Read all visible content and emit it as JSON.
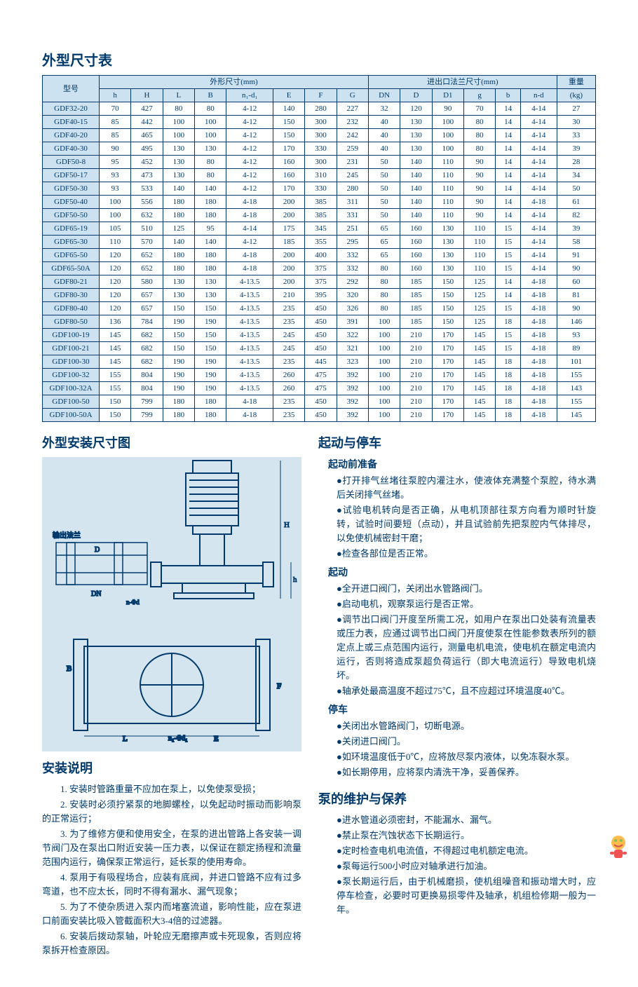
{
  "title_dims": "外型尺寸表",
  "thead": {
    "model": "型号",
    "shape": "外形尺寸(mm)",
    "flange": "进出口法兰尺寸(mm)",
    "weight": "重量",
    "weight_unit": "(kg)",
    "sub": [
      "h",
      "H",
      "L",
      "B",
      "n₁-d₁",
      "E",
      "F",
      "G",
      "DN",
      "D",
      "D1",
      "g",
      "b",
      "n-d"
    ]
  },
  "rows": [
    [
      "GDF32-20",
      "70",
      "427",
      "80",
      "80",
      "4-12",
      "140",
      "280",
      "227",
      "32",
      "120",
      "90",
      "70",
      "14",
      "4-14",
      "27"
    ],
    [
      "GDF40-15",
      "85",
      "442",
      "100",
      "100",
      "4-12",
      "150",
      "300",
      "232",
      "40",
      "130",
      "100",
      "80",
      "14",
      "4-14",
      "30"
    ],
    [
      "GDF40-20",
      "85",
      "465",
      "100",
      "100",
      "4-12",
      "150",
      "300",
      "242",
      "40",
      "130",
      "100",
      "80",
      "14",
      "4-14",
      "33"
    ],
    [
      "GDF40-30",
      "90",
      "495",
      "130",
      "130",
      "4-12",
      "170",
      "330",
      "259",
      "40",
      "130",
      "100",
      "80",
      "14",
      "4-14",
      "39"
    ],
    [
      "GDF50-8",
      "95",
      "452",
      "130",
      "80",
      "4-12",
      "160",
      "300",
      "231",
      "50",
      "140",
      "110",
      "90",
      "14",
      "4-14",
      "28"
    ],
    [
      "GDF50-17",
      "93",
      "473",
      "130",
      "80",
      "4-12",
      "160",
      "310",
      "245",
      "50",
      "140",
      "110",
      "90",
      "14",
      "4-14",
      "34"
    ],
    [
      "GDF50-30",
      "93",
      "533",
      "140",
      "140",
      "4-12",
      "170",
      "330",
      "280",
      "50",
      "140",
      "110",
      "90",
      "14",
      "4-14",
      "50"
    ],
    [
      "GDF50-40",
      "100",
      "556",
      "180",
      "180",
      "4-18",
      "200",
      "385",
      "311",
      "50",
      "140",
      "110",
      "90",
      "14",
      "4-18",
      "61"
    ],
    [
      "GDF50-50",
      "100",
      "632",
      "180",
      "180",
      "4-18",
      "200",
      "385",
      "331",
      "50",
      "140",
      "110",
      "90",
      "14",
      "4-14",
      "82"
    ],
    [
      "GDF65-19",
      "105",
      "510",
      "125",
      "95",
      "4-14",
      "175",
      "345",
      "251",
      "65",
      "160",
      "130",
      "110",
      "15",
      "4-14",
      "39"
    ],
    [
      "GDF65-30",
      "110",
      "570",
      "140",
      "140",
      "4-12",
      "185",
      "355",
      "295",
      "65",
      "160",
      "130",
      "110",
      "15",
      "4-14",
      "58"
    ],
    [
      "GDF65-50",
      "120",
      "652",
      "180",
      "180",
      "4-18",
      "200",
      "400",
      "332",
      "65",
      "160",
      "130",
      "110",
      "15",
      "4-14",
      "91"
    ],
    [
      "GDF65-50A",
      "120",
      "652",
      "180",
      "180",
      "4-18",
      "200",
      "375",
      "332",
      "80",
      "160",
      "130",
      "110",
      "15",
      "4-14",
      "90"
    ],
    [
      "GDF80-21",
      "120",
      "580",
      "130",
      "130",
      "4-13.5",
      "200",
      "375",
      "292",
      "80",
      "185",
      "150",
      "125",
      "14",
      "4-18",
      "60"
    ],
    [
      "GDF80-30",
      "120",
      "657",
      "130",
      "130",
      "4-13.5",
      "210",
      "395",
      "320",
      "80",
      "185",
      "150",
      "125",
      "14",
      "4-18",
      "81"
    ],
    [
      "GDF80-40",
      "120",
      "657",
      "150",
      "150",
      "4-13.5",
      "235",
      "450",
      "326",
      "80",
      "185",
      "150",
      "125",
      "15",
      "4-18",
      "90"
    ],
    [
      "GDF80-50",
      "136",
      "784",
      "190",
      "190",
      "4-13.5",
      "235",
      "450",
      "391",
      "100",
      "185",
      "150",
      "125",
      "18",
      "4-18",
      "146"
    ],
    [
      "GDF100-19",
      "145",
      "682",
      "150",
      "150",
      "4-13.5",
      "245",
      "450",
      "322",
      "100",
      "210",
      "170",
      "145",
      "15",
      "4-18",
      "93"
    ],
    [
      "GDF100-21",
      "145",
      "682",
      "150",
      "150",
      "4-13.5",
      "245",
      "450",
      "321",
      "100",
      "210",
      "170",
      "145",
      "15",
      "4-18",
      "89"
    ],
    [
      "GDF100-30",
      "145",
      "682",
      "190",
      "190",
      "4-13.5",
      "235",
      "445",
      "323",
      "100",
      "210",
      "170",
      "145",
      "18",
      "4-18",
      "101"
    ],
    [
      "GDF100-32",
      "155",
      "804",
      "190",
      "190",
      "4-13.5",
      "260",
      "475",
      "392",
      "100",
      "210",
      "170",
      "145",
      "18",
      "4-18",
      "155"
    ],
    [
      "GDF100-32A",
      "155",
      "804",
      "190",
      "190",
      "4-13.5",
      "260",
      "475",
      "392",
      "100",
      "210",
      "170",
      "145",
      "18",
      "4-18",
      "143"
    ],
    [
      "GDF100-50",
      "150",
      "799",
      "180",
      "180",
      "4-18",
      "235",
      "450",
      "392",
      "100",
      "210",
      "170",
      "145",
      "18",
      "4-18",
      "155"
    ],
    [
      "GDF100-50A",
      "150",
      "799",
      "180",
      "180",
      "4-18",
      "235",
      "450",
      "392",
      "100",
      "210",
      "170",
      "145",
      "18",
      "4-18",
      "145"
    ]
  ],
  "title_diagram": "外型安装尺寸图",
  "title_install": "安装说明",
  "install_items": [
    "1.  安装时管路重量不应加在泵上，以免使泵受损；",
    "2.  安装时必须拧紧泵的地脚螺栓，以免起动时振动而影响泵的正常运行；",
    "3.  为了维修方便和使用安全，在泵的进出管路上各安装一调节阀门及在泵出口附近安装一压力表，以保证在额定扬程和流量范围内运行，确保泵正常运行，延长泵的使用寿命。",
    "4.  泵用于有吸程场合，应装有底阀，并进口管路不应有过多弯道，也不应太长，同时不得有漏水、漏气现象；",
    "5.  为了不使杂质进入泵内而堵塞流道，影响性能，应在泵进口前面安装比吸入管截面积大3-4倍的过滤器。",
    "6.  安装后拨动泵轴，叶轮应无磨擦声或卡死现象，否则应将泵拆开检查原因。"
  ],
  "title_start": "起动与停车",
  "s_prep": "起动前准备",
  "prep_items": [
    "●打开排气丝堵往泵腔内灌注水，使液体充满整个泵腔，待水满后关闭排气丝堵。",
    "●试验电机转向是否正确，从电机顶部往泵方向看为顺时针旋转，试验时间要短（点动），并且试验前先把泵腔内气体排尽，以免使机械密封干磨；",
    "●检查各部位是否正常。"
  ],
  "s_start": "起动",
  "start_items": [
    "●全开进口阀门，关闭出水管路阀门。",
    "●启动电机，观察泵运行是否正常。",
    "●调节出口阀门开度至所需工况，如用户在泵出口处装有流量表或压力表，应通过调节出口阀门开度使泵在性能参数表所列的额定点上或三点范围内运行，测量电机电流，使电机在额定电流内运行，否则将造成泵超负荷运行（即大电流运行）导致电机烧坏。",
    "●轴承处最高温度不超过75℃，且不应超过环境温度40℃。"
  ],
  "s_stop": "停车",
  "stop_items": [
    "●关闭出水管路阀门，切断电源。",
    "●关闭进口阀门。",
    "●如环境温度低于0℃，应将放尽泵内液体，以免冻裂水泵。",
    "●如长期停用，应将泵内清洗干净，妥善保养。"
  ],
  "title_maint": "泵的维护与保养",
  "maint_items": [
    "●进水管道必须密封，不能漏水、漏气。",
    "●禁止泵在汽蚀状态下长期运行。",
    "●定时检查电机电流值，不得超过电机额定电流。",
    "●泵每运行500小时应对轴承进行加油。",
    "●泵长期运行后，由于机械磨损，使机组噪音和振动增大时，应停车检查，必要时可更换易损零件及轴承，机组检修期一般为一年。"
  ],
  "colors": {
    "ink": "#003a6c",
    "th_bg": "#cde2f0",
    "diagram_bg": "#d4e5f0"
  }
}
